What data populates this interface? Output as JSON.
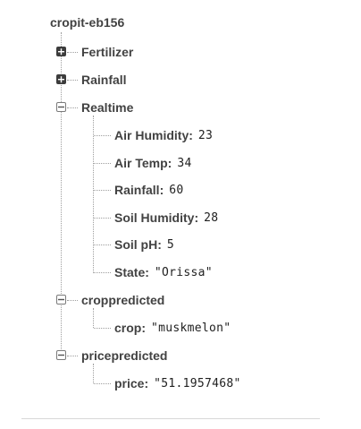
{
  "tree": {
    "root": "cropit-eb156",
    "fertilizer": "Fertilizer",
    "rainfall_node": "Rainfall",
    "realtime": "Realtime",
    "realtime_children": {
      "air_humidity_key": "Air Humidity:",
      "air_humidity_val": "23",
      "air_temp_key": "Air Temp:",
      "air_temp_val": "34",
      "rainfall_key": "Rainfall:",
      "rainfall_val": "60",
      "soil_humidity_key": "Soil Humidity:",
      "soil_humidity_val": "28",
      "soil_ph_key": "Soil pH:",
      "soil_ph_val": "5",
      "state_key": "State:",
      "state_val": "\"Orissa\""
    },
    "croppredicted": "croppredicted",
    "crop_key": "crop:",
    "crop_val": "\"muskmelon\"",
    "pricepredicted": "pricepredicted",
    "price_key": "price:",
    "price_val": "\"51.1957468\""
  },
  "icons": {
    "expand": "plus-box-icon",
    "collapse": "minus-box-icon"
  },
  "colors": {
    "text": "#424242",
    "line": "#9e9e9e",
    "toggle_closed": "#3c3c3c"
  }
}
